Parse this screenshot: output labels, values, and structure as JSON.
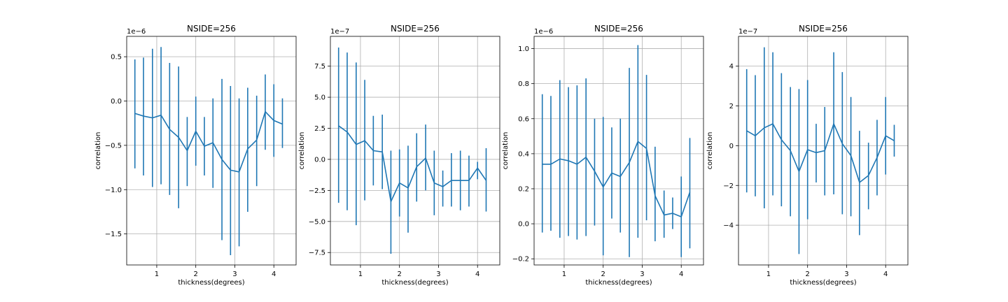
{
  "colors": {
    "series": "#1f77b4",
    "grid": "#b0b0b0",
    "axes": "#000000"
  },
  "chart_data": [
    {
      "type": "line",
      "title": "NSIDE=256",
      "xlabel": "thickness(degrees)",
      "ylabel": "correlation",
      "scale_label": "1e−6",
      "xlim": [
        0.23,
        4.57
      ],
      "ylim": [
        -1.85e-06,
        7.3e-07
      ],
      "xticks": [
        1,
        2,
        3,
        4
      ],
      "xtick_labels": [
        "1",
        "2",
        "3",
        "4"
      ],
      "yticks": [
        -1.5e-06,
        -1e-06,
        -5e-07,
        0,
        5e-07
      ],
      "ytick_labels": [
        "−1.5",
        "−1.0",
        "−0.5",
        "0.0",
        "0.5"
      ],
      "grid": true,
      "x": [
        0.44,
        0.66,
        0.89,
        1.11,
        1.33,
        1.56,
        1.78,
        2.0,
        2.22,
        2.44,
        2.67,
        2.89,
        3.11,
        3.33,
        3.56,
        3.78,
        4.0,
        4.22
      ],
      "y": [
        -1.4e-07,
        -1.7e-07,
        -1.9e-07,
        -1.6e-07,
        -3.2e-07,
        -4.1e-07,
        -5.6e-07,
        -3.4e-07,
        -5.1e-07,
        -4.7e-07,
        -6.6e-07,
        -7.8e-07,
        -8e-07,
        -5.4e-07,
        -4.4e-07,
        -1.2e-07,
        -2.2e-07,
        -2.6e-07
      ],
      "yerr_low": [
        -7.6e-07,
        -8.4e-07,
        -9.7e-07,
        -9.4e-07,
        -1.06e-06,
        -1.21e-06,
        -9.6e-07,
        -7.3e-07,
        -8.4e-07,
        -9.8e-07,
        -1.57e-06,
        -1.74e-06,
        -1.64e-06,
        -1.25e-06,
        -9.6e-07,
        -5.5e-07,
        -6.3e-07,
        -5.3e-07
      ],
      "yerr_high": [
        4.7e-07,
        4.9e-07,
        5.9e-07,
        6.1e-07,
        4.3e-07,
        3.9e-07,
        -1.8e-07,
        5e-08,
        -1.8e-07,
        3e-08,
        2.5e-07,
        1.7e-07,
        3e-08,
        1.5e-07,
        6e-08,
        3e-07,
        1.9e-07,
        3e-08
      ]
    },
    {
      "type": "line",
      "title": "NSIDE=256",
      "xlabel": "thickness(degrees)",
      "ylabel": "correlation",
      "scale_label": "1e−7",
      "xlim": [
        0.23,
        4.57
      ],
      "ylim": [
        -8.5e-07,
        9.9e-07
      ],
      "xticks": [
        1,
        2,
        3,
        4
      ],
      "xtick_labels": [
        "1",
        "2",
        "3",
        "4"
      ],
      "yticks": [
        -7.5e-07,
        -5e-07,
        -2.5e-07,
        0,
        2.5e-07,
        5e-07,
        7.5e-07
      ],
      "ytick_labels": [
        "−7.5",
        "−5.0",
        "−2.5",
        "0.0",
        "2.5",
        "5.0",
        "7.5"
      ],
      "grid": true,
      "x": [
        0.44,
        0.66,
        0.89,
        1.11,
        1.33,
        1.56,
        1.78,
        2.0,
        2.22,
        2.44,
        2.67,
        2.89,
        3.11,
        3.33,
        3.56,
        3.78,
        4.0,
        4.22
      ],
      "y": [
        2.7e-07,
        2.2e-07,
        1.2e-07,
        1.5e-07,
        7e-08,
        6e-08,
        -3.4e-07,
        -1.9e-07,
        -2.3e-07,
        -6e-08,
        1e-08,
        -1.9e-07,
        -2.2e-07,
        -1.7e-07,
        -1.7e-07,
        -1.7e-07,
        -7e-08,
        -1.7e-07
      ],
      "yerr_low": [
        -3.5e-07,
        -4.1e-07,
        -5.3e-07,
        -3.3e-07,
        -2.1e-07,
        -2.4e-07,
        -7.6e-07,
        -4.6e-07,
        -5.9e-07,
        -3.4e-07,
        -2.5e-07,
        -4.5e-07,
        -3.8e-07,
        -3.8e-07,
        -4.1e-07,
        -3.8e-07,
        -1.6e-07,
        -4.2e-07
      ],
      "yerr_high": [
        9e-07,
        8.6e-07,
        7.8e-07,
        6.4e-07,
        3.5e-07,
        3.6e-07,
        7e-08,
        8e-08,
        1.1e-07,
        2.1e-07,
        2.8e-07,
        7e-08,
        -9e-08,
        5e-08,
        7e-08,
        3e-08,
        -2e-08,
        9e-08
      ]
    },
    {
      "type": "line",
      "title": "NSIDE=256",
      "xlabel": "thickness(degrees)",
      "ylabel": "correlation",
      "scale_label": "1e−6",
      "xlim": [
        0.23,
        4.57
      ],
      "ylim": [
        -2.35e-07,
        1.07e-06
      ],
      "xticks": [
        1,
        2,
        3,
        4
      ],
      "xtick_labels": [
        "1",
        "2",
        "3",
        "4"
      ],
      "yticks": [
        -2e-07,
        0,
        2e-07,
        4e-07,
        6e-07,
        8e-07,
        1e-06
      ],
      "ytick_labels": [
        "−0.2",
        "0.0",
        "0.2",
        "0.4",
        "0.6",
        "0.8",
        "1.0"
      ],
      "grid": true,
      "x": [
        0.44,
        0.66,
        0.89,
        1.11,
        1.33,
        1.56,
        1.78,
        2.0,
        2.22,
        2.44,
        2.67,
        2.89,
        3.11,
        3.33,
        3.56,
        3.78,
        4.0,
        4.22
      ],
      "y": [
        3.4e-07,
        3.4e-07,
        3.7e-07,
        3.6e-07,
        3.4e-07,
        3.8e-07,
        3e-07,
        2.1e-07,
        2.9e-07,
        2.7e-07,
        3.5e-07,
        4.7e-07,
        4.3e-07,
        1.6e-07,
        5e-08,
        6e-08,
        4e-08,
        1.8e-07
      ],
      "yerr_low": [
        -5e-08,
        -4e-08,
        -8e-08,
        -7e-08,
        -9e-08,
        -7e-08,
        -1e-08,
        -1.8e-07,
        3e-08,
        -5e-08,
        -1.9e-07,
        -8e-08,
        2e-08,
        -1e-07,
        -8e-08,
        -3e-08,
        -1.9e-07,
        -1.4e-07
      ],
      "yerr_high": [
        7.4e-07,
        7.3e-07,
        8.2e-07,
        7.8e-07,
        7.9e-07,
        8.3e-07,
        6e-07,
        6.1e-07,
        5.5e-07,
        6e-07,
        8.9e-07,
        1.02e-06,
        8.5e-07,
        4.4e-07,
        1.9e-07,
        1.5e-07,
        2.7e-07,
        4.9e-07
      ]
    },
    {
      "type": "line",
      "title": "NSIDE=256",
      "xlabel": "thickness(degrees)",
      "ylabel": "correlation",
      "scale_label": "1e−7",
      "xlim": [
        0.23,
        4.57
      ],
      "ylim": [
        -6e-07,
        5.5e-07
      ],
      "xticks": [
        1,
        2,
        3,
        4
      ],
      "xtick_labels": [
        "1",
        "2",
        "3",
        "4"
      ],
      "yticks": [
        -4e-07,
        -2e-07,
        0,
        2e-07,
        4e-07
      ],
      "ytick_labels": [
        "−4",
        "−2",
        "0",
        "2",
        "4"
      ],
      "grid": true,
      "x": [
        0.44,
        0.66,
        0.89,
        1.11,
        1.33,
        1.56,
        1.78,
        2.0,
        2.22,
        2.44,
        2.67,
        2.89,
        3.11,
        3.33,
        3.56,
        3.78,
        4.0,
        4.22
      ],
      "y": [
        7.5e-08,
        5e-08,
        9e-08,
        1.1e-07,
        3e-08,
        -2.5e-08,
        -1.3e-07,
        -2e-08,
        -3.5e-08,
        -2.5e-08,
        1.1e-07,
        1e-08,
        -5e-08,
        -1.85e-07,
        -1.5e-07,
        -6e-08,
        5e-08,
        2.5e-08
      ],
      "yerr_low": [
        -2.35e-07,
        -2.55e-07,
        -3.15e-07,
        -2.5e-07,
        -3.05e-07,
        -3.55e-07,
        -5.45e-07,
        -3.7e-07,
        -1.85e-07,
        -2.5e-07,
        -2.45e-07,
        -3.45e-07,
        -3.55e-07,
        -4.5e-07,
        -3.2e-07,
        -2.5e-07,
        -1.45e-07,
        -5.5e-08
      ],
      "yerr_high": [
        3.85e-07,
        3.55e-07,
        4.95e-07,
        4.7e-07,
        3.65e-07,
        2.95e-07,
        2.85e-07,
        3.3e-07,
        1.1e-07,
        1.95e-07,
        4.7e-07,
        3.7e-07,
        2.45e-07,
        7.5e-08,
        1.5e-08,
        1.3e-07,
        2.45e-07,
        1.05e-07
      ]
    }
  ]
}
